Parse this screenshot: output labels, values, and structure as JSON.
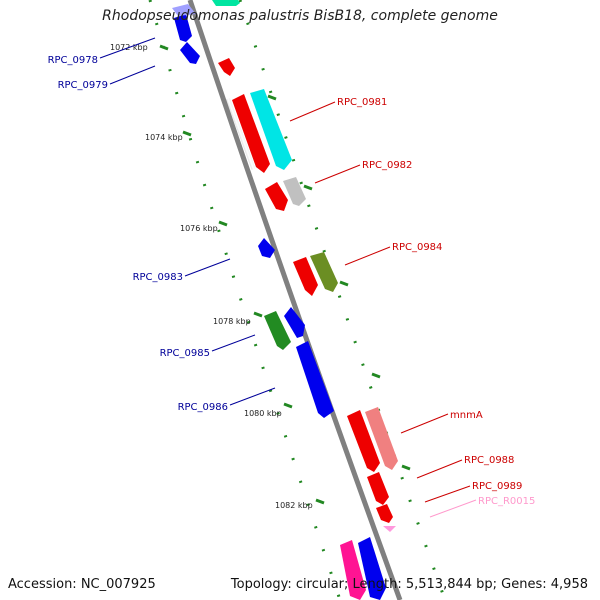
{
  "title": "Rhodopseudomonas palustris BisB18, complete genome",
  "footer": {
    "accession": "Accession: NC_007925",
    "summary": "Topology: circular; Length: 5,513,844 bp; Genes: 4,958"
  },
  "scale_labels": [
    "1072 kbp",
    "1074 kbp",
    "1076 kbp",
    "1078 kbp",
    "1080 kbp",
    "1082 kbp"
  ],
  "gene_labels": [
    "RPC_0978",
    "RPC_0979",
    "RPC_0981",
    "RPC_0982",
    "RPC_0983",
    "RPC_0984",
    "RPC_0985",
    "RPC_0986",
    "mnmA",
    "RPC_0988",
    "RPC_0989",
    "RPC_R0015"
  ],
  "colors": {
    "backbone": "#808080",
    "forward_label": "#cc0000",
    "reverse_label": "#000099",
    "rna_label": "#ff99cc",
    "tick": "#228822",
    "red": "#ee0000",
    "blue": "#0000ee",
    "cyan": "#00e5e5",
    "gray": "#c0c0c0",
    "olive": "#6b8e23",
    "green": "#228b22",
    "salmon": "#f08080",
    "magenta": "#ff1493",
    "pink": "#ff99dd"
  }
}
